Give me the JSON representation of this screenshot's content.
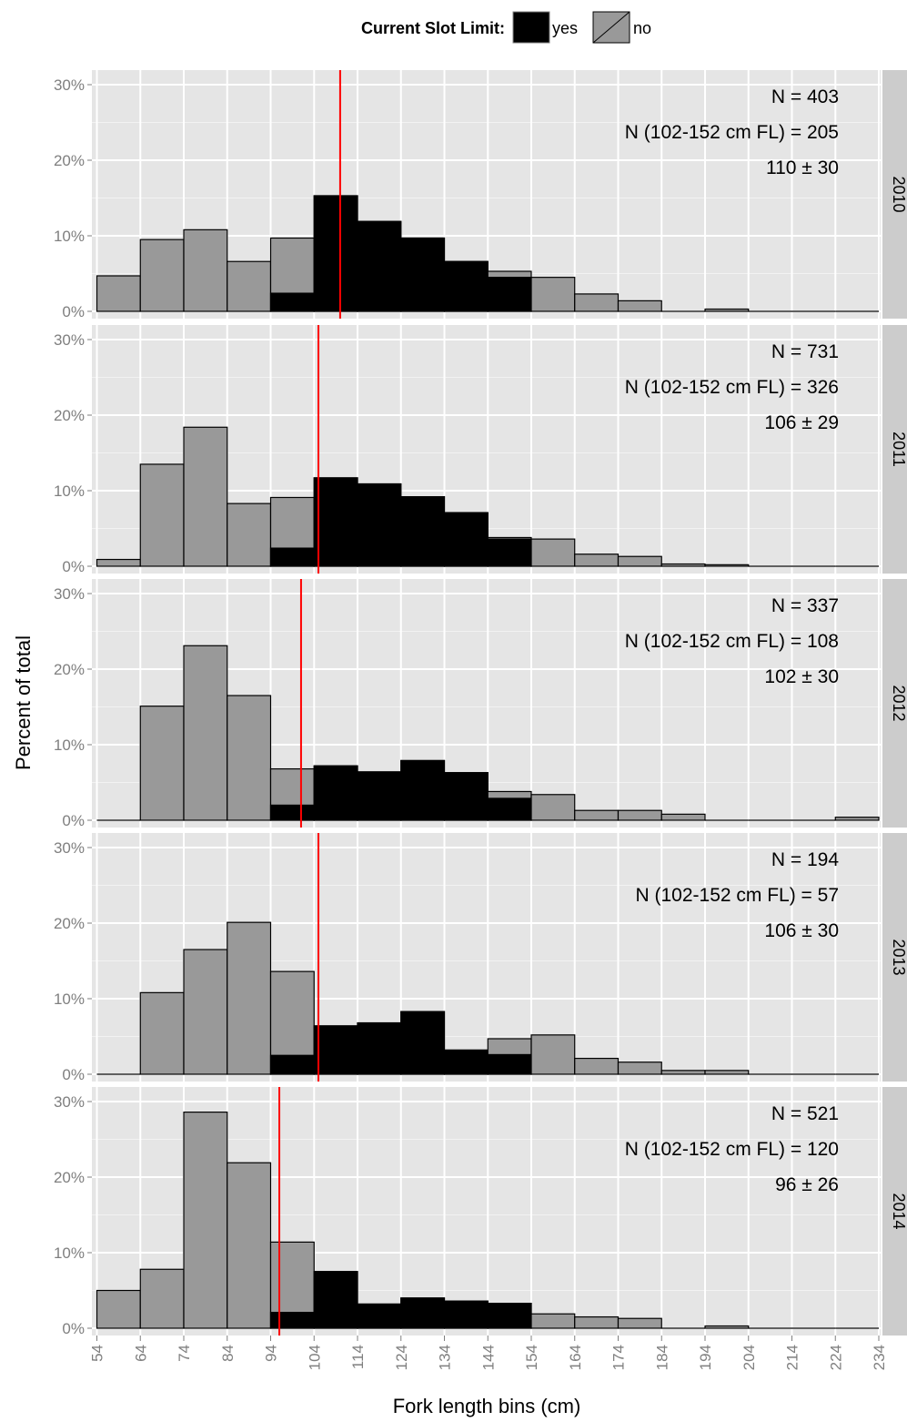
{
  "legend": {
    "title": "Current Slot Limit:",
    "items": [
      {
        "label": "yes",
        "color": "#000000"
      },
      {
        "label": "no",
        "color": "#999999"
      }
    ]
  },
  "colors": {
    "panel_bg": "#e5e5e5",
    "strip_bg": "#cccccc",
    "grid_major": "#ffffff",
    "grid_minor": "#f2f2f2",
    "no_fill": "#999999",
    "yes_fill": "#000000",
    "mean_line": "#ff0000",
    "axis_text": "#7f7f7f"
  },
  "chart_data": {
    "type": "bar",
    "subtype": "stacked histogram, faceted by year",
    "xlabel": "Fork length bins (cm)",
    "ylabel": "Percent of total",
    "x_ticks": [
      "54",
      "64",
      "74",
      "84",
      "94",
      "104",
      "114",
      "124",
      "134",
      "144",
      "154",
      "164",
      "174",
      "184",
      "194",
      "204",
      "214",
      "224",
      "234"
    ],
    "y_ticks": [
      "0%",
      "10%",
      "20%",
      "30%"
    ],
    "ylim": [
      0,
      30
    ],
    "xlim": [
      54,
      234
    ],
    "bin_starts": [
      54,
      64,
      74,
      84,
      94,
      104,
      114,
      124,
      134,
      144,
      154,
      164,
      174,
      184,
      194,
      204,
      214,
      224
    ],
    "grid": true,
    "legend_position": "top",
    "panels": [
      {
        "strip": "2010",
        "annotations": [
          "N = 403",
          "N (102-152 cm FL) = 205",
          "110 ± 30"
        ],
        "mean": 110,
        "total": [
          4.7,
          9.5,
          10.8,
          6.6,
          9.7,
          15.3,
          11.9,
          9.7,
          6.6,
          5.3,
          4.5,
          2.3,
          1.4,
          0,
          0.3,
          0,
          0,
          0
        ],
        "slot": [
          0,
          0,
          0,
          0,
          2.4,
          15.3,
          11.9,
          9.7,
          6.6,
          4.5,
          0,
          0,
          0,
          0,
          0,
          0,
          0,
          0
        ]
      },
      {
        "strip": "2011",
        "annotations": [
          "N = 731",
          "N (102-152 cm FL) = 326",
          "106 ± 29"
        ],
        "mean": 105,
        "total": [
          0.9,
          13.5,
          18.4,
          8.3,
          9.1,
          11.7,
          10.9,
          9.2,
          7.1,
          3.8,
          3.6,
          1.6,
          1.3,
          0.3,
          0.2,
          0,
          0,
          0
        ],
        "slot": [
          0,
          0,
          0,
          0,
          2.4,
          11.7,
          10.9,
          9.2,
          7.1,
          3.6,
          0,
          0,
          0,
          0,
          0,
          0,
          0,
          0
        ]
      },
      {
        "strip": "2012",
        "annotations": [
          "N = 337",
          "N (102-152 cm FL) = 108",
          "102 ± 30"
        ],
        "mean": 101,
        "total": [
          0,
          15.1,
          23.1,
          16.5,
          6.8,
          7.2,
          6.4,
          7.9,
          6.3,
          3.8,
          3.4,
          1.3,
          1.3,
          0.8,
          0,
          0,
          0,
          0.4
        ],
        "slot": [
          0,
          0,
          0,
          0,
          2.0,
          7.2,
          6.4,
          7.9,
          6.3,
          2.9,
          0,
          0,
          0,
          0,
          0,
          0,
          0,
          0
        ]
      },
      {
        "strip": "2013",
        "annotations": [
          "N = 194",
          "N (102-152 cm FL) = 57",
          "106 ± 30"
        ],
        "mean": 105,
        "total": [
          0,
          10.8,
          16.5,
          20.1,
          13.6,
          6.4,
          6.8,
          8.3,
          3.2,
          4.7,
          5.2,
          2.1,
          1.6,
          0.5,
          0.5,
          0,
          0,
          0
        ],
        "slot": [
          0,
          0,
          0,
          0,
          2.5,
          6.4,
          6.8,
          8.3,
          3.2,
          2.6,
          0,
          0,
          0,
          0,
          0,
          0,
          0,
          0
        ]
      },
      {
        "strip": "2014",
        "annotations": [
          "N = 521",
          "N (102-152 cm FL) = 120",
          "96 ± 26"
        ],
        "mean": 96,
        "total": [
          5.0,
          7.8,
          28.6,
          21.9,
          11.4,
          7.5,
          3.2,
          4.0,
          3.6,
          3.3,
          1.9,
          1.5,
          1.3,
          0,
          0.3,
          0,
          0,
          0
        ],
        "slot": [
          0,
          0,
          0,
          0,
          2.1,
          7.5,
          3.2,
          4.0,
          3.6,
          3.3,
          0,
          0,
          0,
          0,
          0,
          0,
          0,
          0
        ]
      }
    ]
  }
}
